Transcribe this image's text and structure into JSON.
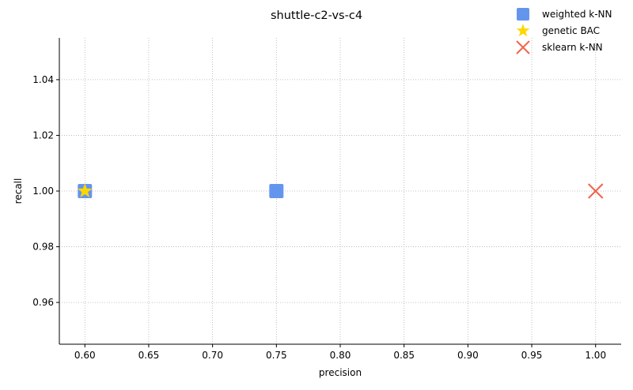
{
  "chart_data": {
    "type": "scatter",
    "title": "shuttle-c2-vs-c4",
    "xlabel": "precision",
    "ylabel": "recall",
    "xlim": [
      0.58,
      1.02
    ],
    "ylim": [
      0.945,
      1.055
    ],
    "xticks": [
      "0.60",
      "0.65",
      "0.70",
      "0.75",
      "0.80",
      "0.85",
      "0.90",
      "0.95",
      "1.00"
    ],
    "yticks": [
      "0.96",
      "0.98",
      "1.00",
      "1.02",
      "1.04"
    ],
    "grid": true,
    "legend_position": "top-right",
    "series": [
      {
        "name": "weighted k-NN",
        "marker": "square",
        "color": "#6495ed",
        "points": [
          {
            "x": 0.6,
            "y": 1.0
          },
          {
            "x": 0.75,
            "y": 1.0
          }
        ]
      },
      {
        "name": "genetic BAC",
        "marker": "star",
        "color": "#ffd700",
        "points": [
          {
            "x": 0.6,
            "y": 1.0
          }
        ]
      },
      {
        "name": "sklearn k-NN",
        "marker": "x",
        "color": "#f0644b",
        "points": [
          {
            "x": 1.0,
            "y": 1.0
          }
        ]
      }
    ]
  }
}
